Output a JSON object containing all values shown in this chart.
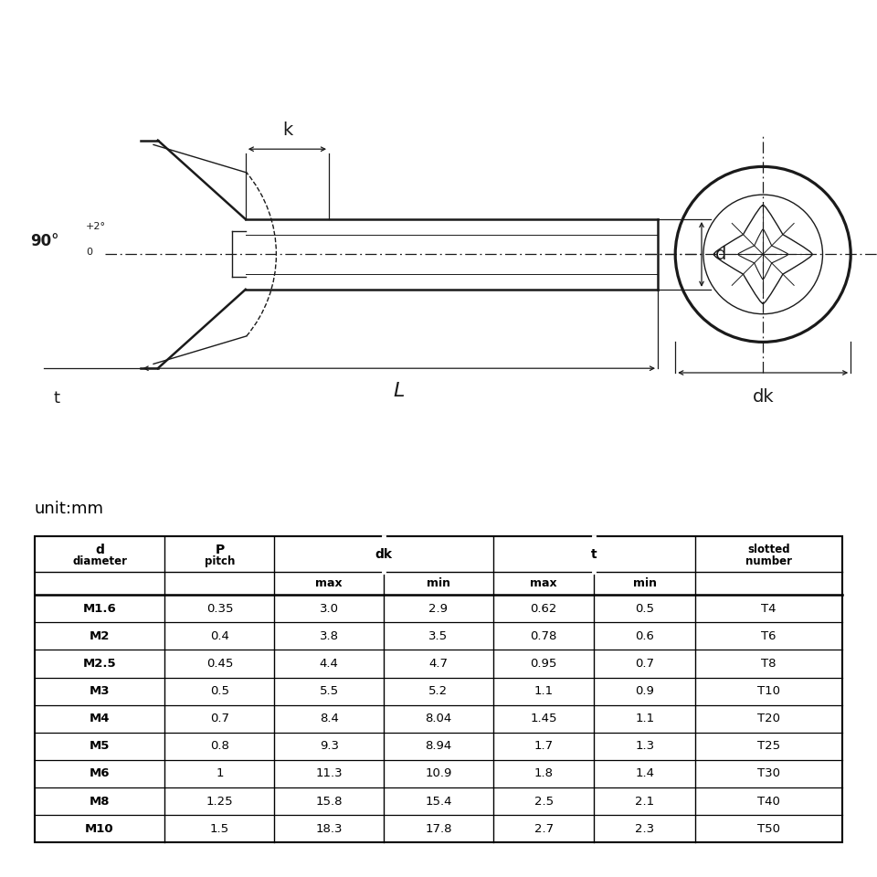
{
  "bg_color": "#ffffff",
  "unit_label": "unit:mm",
  "table_data": [
    [
      "M1.6",
      "0.35",
      "3.0",
      "2.9",
      "0.62",
      "0.5",
      "T4"
    ],
    [
      "M2",
      "0.4",
      "3.8",
      "3.5",
      "0.78",
      "0.6",
      "T6"
    ],
    [
      "M2.5",
      "0.45",
      "4.4",
      "4.7",
      "0.95",
      "0.7",
      "T8"
    ],
    [
      "M3",
      "0.5",
      "5.5",
      "5.2",
      "1.1",
      "0.9",
      "T10"
    ],
    [
      "M4",
      "0.7",
      "8.4",
      "8.04",
      "1.45",
      "1.1",
      "T20"
    ],
    [
      "M5",
      "0.8",
      "9.3",
      "8.94",
      "1.7",
      "1.3",
      "T25"
    ],
    [
      "M6",
      "1",
      "11.3",
      "10.9",
      "1.8",
      "1.4",
      "T30"
    ],
    [
      "M8",
      "1.25",
      "15.8",
      "15.4",
      "2.5",
      "2.1",
      "T40"
    ],
    [
      "M10",
      "1.5",
      "18.3",
      "17.8",
      "2.7",
      "2.3",
      "T50"
    ]
  ],
  "lc": "#1a1a1a",
  "lw_main": 1.8,
  "lw_thin": 1.0,
  "lw_dim": 0.9
}
